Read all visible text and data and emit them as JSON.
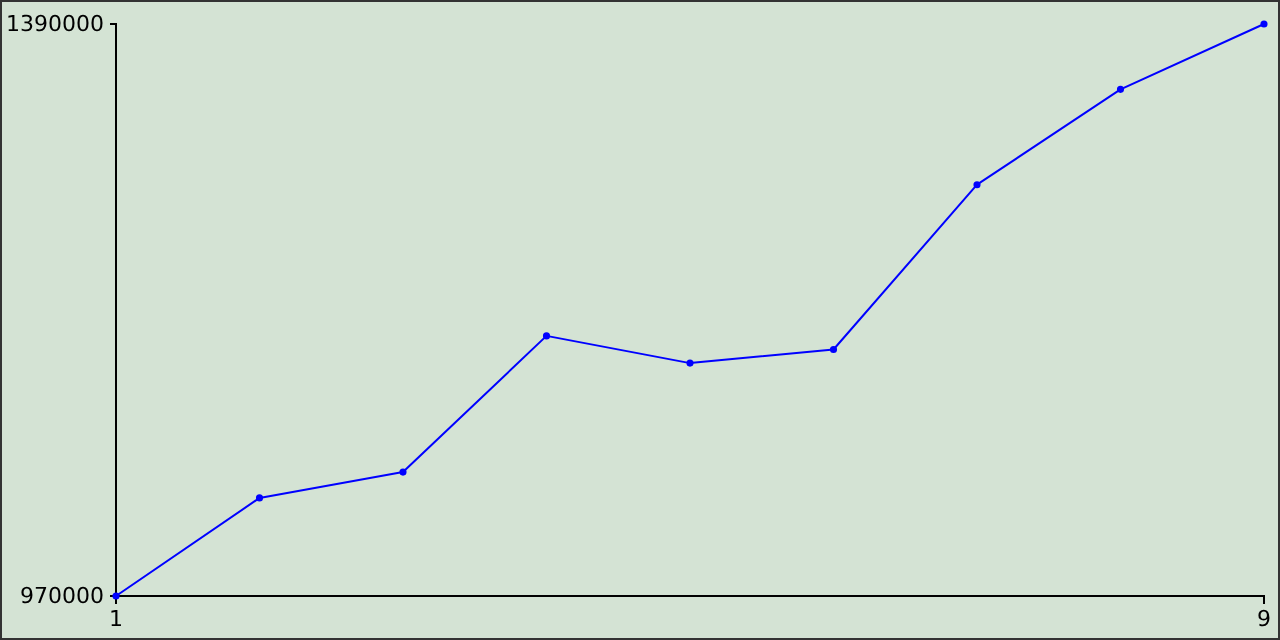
{
  "chart_data": {
    "type": "line",
    "x": [
      1,
      2,
      3,
      4,
      5,
      6,
      7,
      8,
      9
    ],
    "series": [
      {
        "color": "#0000ff",
        "values": [
          970000,
          1042000,
          1061000,
          1161000,
          1141000,
          1151000,
          1272000,
          1342000,
          1390000
        ]
      }
    ],
    "xlim": [
      1,
      9
    ],
    "xticks": [
      1,
      9
    ],
    "ylim": [
      970000,
      1390000
    ],
    "yticks": [
      970000,
      1390000
    ],
    "marker": "circle",
    "line_style": "solid",
    "grid": false
  }
}
